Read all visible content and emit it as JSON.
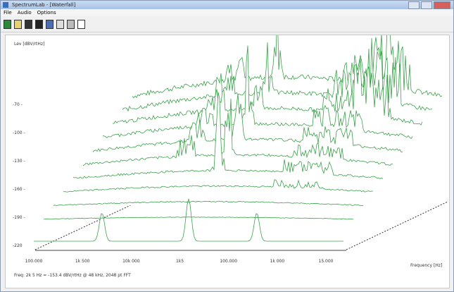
{
  "window": {
    "title": "SpectrumLab - [Waterfall]"
  },
  "menu": [
    "File",
    "Audio",
    "Options"
  ],
  "plot": {
    "y_axis_label": "Lev [dBV/rtHz]",
    "y_labels": [
      "-70 -",
      "-100 -",
      "-130 -",
      "-160 -",
      "-190 -",
      "-220"
    ],
    "x_labels": [
      "100.000",
      "1k 500",
      "10k 000",
      "1k5",
      "100.000",
      "1k 000",
      "15.000"
    ],
    "x_axis_label": "Frequency [Hz]",
    "status": "Freq: 2k 5 Hz = -153.4 dBV/rtHz @ 48 kHz, 2048 pt FFT"
  }
}
